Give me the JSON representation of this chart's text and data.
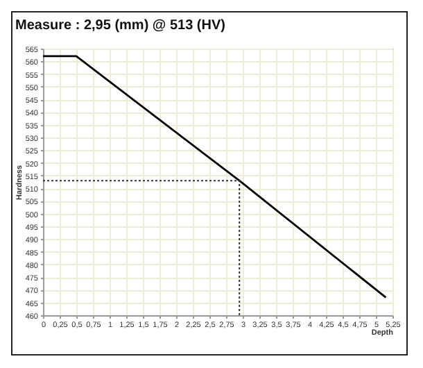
{
  "chart_data": {
    "type": "line",
    "title": "Measure : 2,95 (mm) @ 513 (HV)",
    "xlabel": "Depth",
    "ylabel": "Hardness",
    "xlim": [
      0,
      5.25
    ],
    "ylim": [
      460,
      565
    ],
    "xticks": [
      0,
      {
        "value": 0.25,
        "label": "0,25"
      },
      {
        "value": 0.5,
        "label": "0,5"
      },
      {
        "value": 0.75,
        "label": "0,75"
      },
      1,
      {
        "value": 1.25,
        "label": "1,25"
      },
      {
        "value": 1.5,
        "label": "1,5"
      },
      {
        "value": 1.75,
        "label": "1,75"
      },
      2,
      {
        "value": 2.25,
        "label": "2,25"
      },
      {
        "value": 2.5,
        "label": "2,5"
      },
      {
        "value": 2.75,
        "label": "2,75"
      },
      3,
      {
        "value": 3.25,
        "label": "3,25"
      },
      {
        "value": 3.5,
        "label": "3,5"
      },
      {
        "value": 3.75,
        "label": "3,75"
      },
      4,
      {
        "value": 4.25,
        "label": "4,25"
      },
      {
        "value": 4.5,
        "label": "4,5"
      },
      {
        "value": 4.75,
        "label": "4,75"
      },
      5,
      {
        "value": 5.25,
        "label": "5,25"
      }
    ],
    "yticks": [
      460,
      465,
      470,
      475,
      480,
      485,
      490,
      495,
      500,
      505,
      510,
      515,
      520,
      525,
      530,
      535,
      540,
      545,
      550,
      555,
      560,
      565
    ],
    "grid": true,
    "series": [
      {
        "color": "#000000",
        "line_style": "solid",
        "x": [
          0,
          0.5,
          2.95,
          5.15
        ],
        "values": [
          562,
          562,
          513,
          467
        ]
      },
      {
        "color": "#333333",
        "line_style": "dotted",
        "x": [
          0,
          2.95,
          2.95
        ],
        "values": [
          513,
          513,
          460
        ]
      }
    ]
  }
}
